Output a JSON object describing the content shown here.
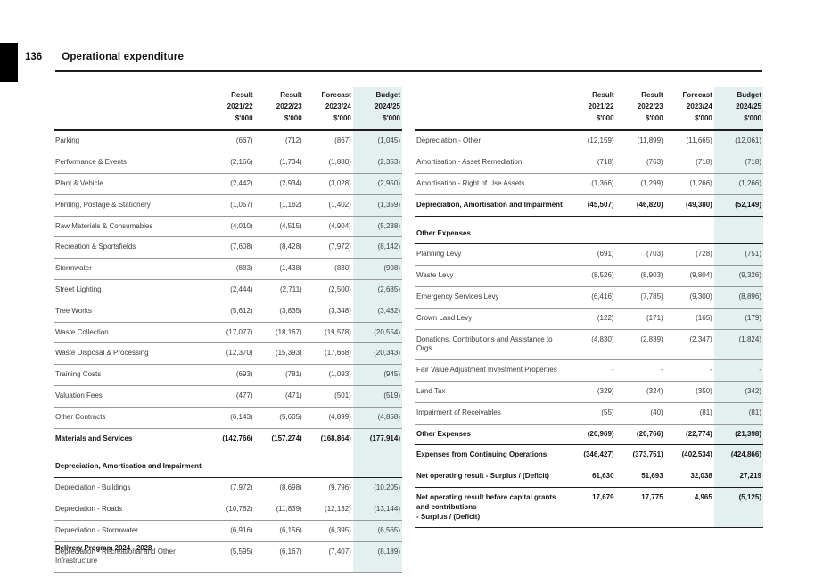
{
  "page": {
    "number": "136",
    "title": "Operational expenditure",
    "footer": "Delivery Program 2024 - 2028"
  },
  "colors": {
    "budget_highlight": "#e4eff0",
    "thin_rule": "#989898",
    "thick_rule": "#1c1c1c"
  },
  "columns": [
    {
      "line1": "Result",
      "line2": "2021/22",
      "line3": "$'000",
      "highlight": false
    },
    {
      "line1": "Result",
      "line2": "2022/23",
      "line3": "$'000",
      "highlight": false
    },
    {
      "line1": "Forecast",
      "line2": "2023/24",
      "line3": "$'000",
      "highlight": false
    },
    {
      "line1": "Budget",
      "line2": "2024/25",
      "line3": "$'000",
      "highlight": true
    }
  ],
  "left_table": {
    "rows": [
      {
        "type": "data",
        "label": "Parking",
        "values": [
          "(667)",
          "(712)",
          "(867)",
          "(1,045)"
        ]
      },
      {
        "type": "data",
        "label": "Performance & Events",
        "values": [
          "(2,166)",
          "(1,734)",
          "(1,880)",
          "(2,353)"
        ]
      },
      {
        "type": "data",
        "label": "Plant & Vehicle",
        "values": [
          "(2,442)",
          "(2,934)",
          "(3,028)",
          "(2,950)"
        ]
      },
      {
        "type": "data",
        "label": "Printing, Postage & Stationery",
        "values": [
          "(1,057)",
          "(1,162)",
          "(1,402)",
          "(1,359)"
        ]
      },
      {
        "type": "data",
        "label": "Raw Materials & Consumables",
        "values": [
          "(4,010)",
          "(4,515)",
          "(4,904)",
          "(5,238)"
        ]
      },
      {
        "type": "data",
        "label": "Recreation & Sportsfields",
        "values": [
          "(7,608)",
          "(8,428)",
          "(7,972)",
          "(8,142)"
        ]
      },
      {
        "type": "data",
        "label": "Stormwater",
        "values": [
          "(883)",
          "(1,438)",
          "(830)",
          "(908)"
        ]
      },
      {
        "type": "data",
        "label": "Street Lighting",
        "values": [
          "(2,444)",
          "(2,711)",
          "(2,500)",
          "(2,685)"
        ]
      },
      {
        "type": "data",
        "label": "Tree Works",
        "values": [
          "(5,612)",
          "(3,835)",
          "(3,348)",
          "(3,432)"
        ]
      },
      {
        "type": "data",
        "label": "Waste Collection",
        "values": [
          "(17,077)",
          "(18,167)",
          "(19,578)",
          "(20,554)"
        ]
      },
      {
        "type": "data",
        "label": "Waste Disposal & Processing",
        "values": [
          "(12,370)",
          "(15,393)",
          "(17,668)",
          "(20,343)"
        ]
      },
      {
        "type": "data",
        "label": "Training Costs",
        "values": [
          "(693)",
          "(781)",
          "(1,093)",
          "(945)"
        ]
      },
      {
        "type": "data",
        "label": "Valuation Fees",
        "values": [
          "(477)",
          "(471)",
          "(501)",
          "(519)"
        ]
      },
      {
        "type": "data",
        "label": "Other Contracts",
        "values": [
          "(6,143)",
          "(5,605)",
          "(4,899)",
          "(4,858)"
        ]
      },
      {
        "type": "total",
        "label": "Materials and Services",
        "values": [
          "(142,766)",
          "(157,274)",
          "(168,864)",
          "(177,914)"
        ]
      },
      {
        "type": "section",
        "label": "Depreciation, Amortisation and Impairment",
        "values": [
          "",
          "",
          "",
          ""
        ]
      },
      {
        "type": "data",
        "label": "Depreciation - Buildings",
        "values": [
          "(7,972)",
          "(8,698)",
          "(9,796)",
          "(10,205)"
        ]
      },
      {
        "type": "data",
        "label": "Depreciation - Roads",
        "values": [
          "(10,782)",
          "(11,839)",
          "(12,132)",
          "(13,144)"
        ]
      },
      {
        "type": "data",
        "label": "Depreciation - Stormwater",
        "values": [
          "(6,916)",
          "(6,156)",
          "(6,395)",
          "(6,565)"
        ]
      },
      {
        "type": "data",
        "label": "Depreciation - Recreational and Other Infrastructure",
        "values": [
          "(5,595)",
          "(6,167)",
          "(7,407)",
          "(8,189)"
        ]
      }
    ]
  },
  "right_table": {
    "rows": [
      {
        "type": "data",
        "label": "Depreciation - Other",
        "values": [
          "(12,159)",
          "(11,899)",
          "(11,665)",
          "(12,061)"
        ]
      },
      {
        "type": "data",
        "label": "Amortisation - Asset Remediation",
        "values": [
          "(718)",
          "(763)",
          "(718)",
          "(718)"
        ]
      },
      {
        "type": "data",
        "label": "Amortisation - Right of Use Assets",
        "values": [
          "(1,366)",
          "(1,299)",
          "(1,266)",
          "(1,266)"
        ]
      },
      {
        "type": "total",
        "label": "Depreciation, Amortisation and Impairment",
        "values": [
          "(45,507)",
          "(46,820)",
          "(49,380)",
          "(52,149)"
        ]
      },
      {
        "type": "section",
        "label": "Other Expenses",
        "values": [
          "",
          "",
          "",
          ""
        ]
      },
      {
        "type": "data",
        "label": "Planning Levy",
        "values": [
          "(691)",
          "(703)",
          "(728)",
          "(751)"
        ]
      },
      {
        "type": "data",
        "label": "Waste Levy",
        "values": [
          "(8,526)",
          "(8,903)",
          "(9,804)",
          "(9,326)"
        ]
      },
      {
        "type": "data",
        "label": "Emergency Services Levy",
        "values": [
          "(6,416)",
          "(7,785)",
          "(9,300)",
          "(8,896)"
        ]
      },
      {
        "type": "data",
        "label": "Crown Land Levy",
        "values": [
          "(122)",
          "(171)",
          "(165)",
          "(179)"
        ]
      },
      {
        "type": "data",
        "label": "Donations, Contributions and Assistance to Orgs",
        "values": [
          "(4,830)",
          "(2,839)",
          "(2,347)",
          "(1,824)"
        ]
      },
      {
        "type": "data",
        "label": "Fair Value Adjustment Investment Properties",
        "values": [
          "-",
          "-",
          "-",
          "-"
        ]
      },
      {
        "type": "data",
        "label": "Land Tax",
        "values": [
          "(329)",
          "(324)",
          "(350)",
          "(342)"
        ]
      },
      {
        "type": "data",
        "label": "Impairment of Receivables",
        "values": [
          "(55)",
          "(40)",
          "(81)",
          "(81)"
        ]
      },
      {
        "type": "total",
        "label": "Other Expenses",
        "values": [
          "(20,969)",
          "(20,766)",
          "(22,774)",
          "(21,398)"
        ]
      },
      {
        "type": "total",
        "label": "Expenses from Continuing Operations",
        "values": [
          "(346,427)",
          "(373,751)",
          "(402,534)",
          "(424,866)"
        ]
      },
      {
        "type": "total",
        "label": "Net operating result - Surplus / (Deficit)",
        "values": [
          "61,630",
          "51,693",
          "32,038",
          "27,219"
        ]
      },
      {
        "type": "total",
        "label": "Net operating result before capital grants and contributions\n- Surplus / (Deficit)",
        "values": [
          "17,679",
          "17,775",
          "4,965",
          "(5,125)"
        ]
      }
    ]
  }
}
